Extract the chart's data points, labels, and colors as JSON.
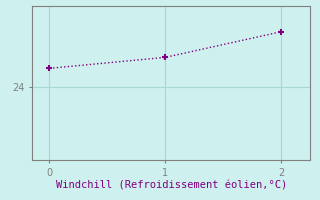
{
  "x": [
    0,
    1,
    2
  ],
  "y": [
    24.5,
    24.8,
    25.5
  ],
  "line_color": "#800080",
  "marker": "+",
  "marker_size": 5,
  "marker_linewidth": 1.5,
  "background_color": "#cef0ee",
  "grid_color": "#a8d8d4",
  "spine_color": "#808080",
  "tick_color": "#808080",
  "xlabel": "Windchill (Refroidissement éolien,°C)",
  "xlabel_color": "#800080",
  "xlabel_fontsize": 7.5,
  "ytick_labels": [
    "24"
  ],
  "ytick_values": [
    24
  ],
  "xtick_values": [
    0,
    1,
    2
  ],
  "ylim": [
    22.0,
    26.2
  ],
  "xlim": [
    -0.15,
    2.25
  ],
  "linewidth": 1.0
}
